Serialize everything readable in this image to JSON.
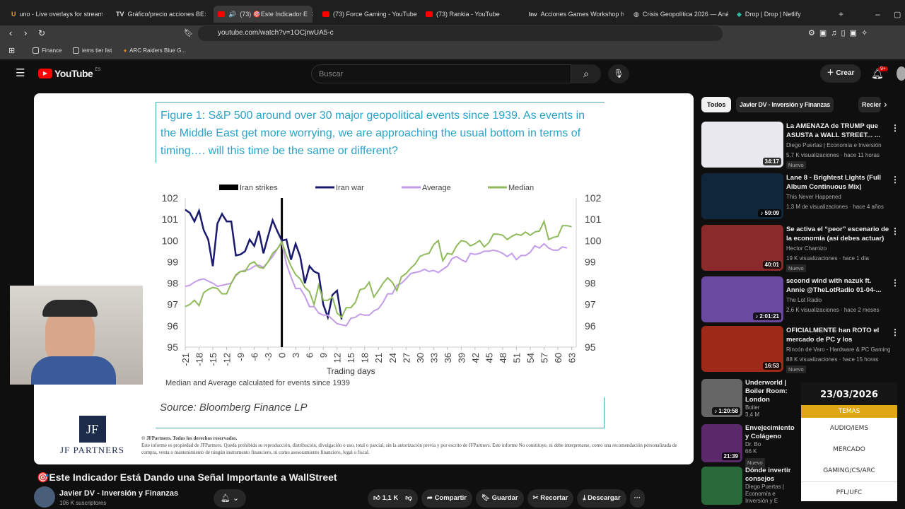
{
  "browser": {
    "tabs": [
      {
        "label": "uno - Live overlays for streamin",
        "icon": "u-icon"
      },
      {
        "label": "Gráfico/precio acciones BE: NY",
        "icon": "tradingview-icon"
      },
      {
        "label": "(73) 🎯Este Indicador E",
        "icon": "youtube-icon",
        "active": true
      },
      {
        "label": "(73) Force Gaming - YouTube",
        "icon": "youtube-icon"
      },
      {
        "label": "(73) Rankia - YouTube",
        "icon": "youtube-icon"
      },
      {
        "label": "Acciones Games Workshop ho",
        "icon": "investing-icon"
      },
      {
        "label": "Crisis Geopolítica 2026 — Anál",
        "icon": "globe-icon"
      },
      {
        "label": "Drop | Drop | Netlify",
        "icon": "netlify-icon"
      }
    ],
    "new_tab": "+",
    "url": "youtube.com/watch?v=1OCjrwUA5-c",
    "bookmarks": [
      "Finance",
      "iems tier list",
      "ARC Raiders Blue G..."
    ]
  },
  "youtube": {
    "logo": "YouTube",
    "region": "ES",
    "search_placeholder": "Buscar",
    "create": "Crear",
    "notif_count": "9+"
  },
  "slide": {
    "figure_title": "Figure 1: S&P 500 around over 30 major geopolitical events since 1939. As events in the Middle East get more worrying, we are approaching the usual bottom in terms of timing…. will this time be the same or different?",
    "note": "Median and Average calculated for events since 1939",
    "source": "Source: Bloomberg Finance LP",
    "copyright": "© JFPartners. Todos los derechos reservados.",
    "disclaimer": "Este informe es propiedad de JFPartners. Queda prohibida su reproducción, distribución, divulgación o uso, total o parcial, sin la autorización previa y por escrito de JFPartners. Este informe No constituye, ni debe interpretarse, como una recomendación personalizada de compra, venta o mantenimiento de ningún instrumento financiero, ni como asesoramiento financiero, legal o fiscal.",
    "logo_mark": "JF",
    "logo_text": "JF PARTNERS"
  },
  "chart_data": {
    "type": "line",
    "xlabel": "Trading days",
    "ylim": [
      95,
      102
    ],
    "xlim": [
      -21,
      64
    ],
    "yticks": [
      95,
      96,
      97,
      98,
      99,
      100,
      101,
      102
    ],
    "xticks": [
      -21,
      -18,
      -15,
      -12,
      -9,
      -6,
      -3,
      0,
      3,
      6,
      9,
      12,
      15,
      18,
      21,
      24,
      27,
      30,
      33,
      36,
      39,
      42,
      45,
      48,
      51,
      54,
      57,
      60,
      63
    ],
    "event_marker": {
      "name": "Iran strikes",
      "x": 0,
      "color": "#000000"
    },
    "series": [
      {
        "name": "Iran war",
        "color": "#1a1a6e",
        "x_start": -21,
        "values": [
          101.45,
          101.3,
          100.9,
          101.4,
          100.5,
          100.05,
          98.8,
          100.8,
          101.25,
          100.9,
          100.9,
          99.3,
          99.35,
          99.5,
          100.05,
          99.75,
          100.45,
          99.4,
          100.2,
          100.95,
          100.45,
          100.0,
          100.05,
          99.1,
          99.85,
          99.25,
          98.0,
          98.8,
          98.55,
          98.45,
          97.0,
          96.4,
          97.45,
          97.65,
          96.3
        ]
      },
      {
        "name": "Average",
        "color": "#c39be8",
        "x_start": -21,
        "values": [
          97.85,
          97.9,
          98.05,
          98.15,
          98.2,
          98.1,
          98.0,
          97.85,
          97.9,
          97.95,
          98.0,
          98.35,
          98.55,
          98.6,
          98.65,
          98.8,
          98.85,
          98.75,
          99.0,
          99.25,
          99.6,
          99.9,
          98.9,
          98.3,
          97.75,
          97.75,
          97.4,
          96.9,
          96.9,
          96.6,
          96.5,
          96.5,
          96.3,
          96.1,
          96.05,
          96.0,
          96.35,
          96.4,
          96.55,
          96.5,
          96.5,
          96.7,
          96.8,
          97.1,
          97.5,
          97.5,
          97.9,
          98.0,
          98.2,
          98.45,
          98.5,
          98.55,
          98.65,
          98.55,
          98.6,
          98.5,
          98.65,
          98.8,
          99.15,
          99.25,
          99.1,
          99.0,
          99.4,
          99.35,
          99.4,
          99.5,
          99.5,
          99.55,
          99.5,
          99.4,
          99.25,
          99.4,
          99.1,
          99.3,
          99.3,
          99.45,
          99.75,
          99.65,
          99.85,
          99.65,
          99.55,
          99.55,
          99.7,
          99.65
        ]
      },
      {
        "name": "Median",
        "color": "#8fba5a",
        "x_start": -21,
        "values": [
          96.9,
          97.0,
          97.2,
          96.95,
          97.55,
          97.7,
          97.8,
          97.75,
          97.5,
          97.5,
          98.0,
          98.4,
          98.55,
          98.55,
          98.9,
          99.0,
          98.75,
          98.7,
          99.0,
          99.4,
          99.6,
          99.95,
          99.3,
          98.8,
          98.4,
          98.2,
          97.8,
          97.6,
          97.0,
          97.9,
          97.2,
          97.2,
          97.35,
          96.6,
          96.4,
          96.85,
          96.85,
          97.1,
          97.7,
          97.75,
          98.05,
          97.35,
          97.65,
          98.0,
          98.25,
          98.05,
          97.65,
          98.3,
          98.45,
          98.7,
          98.9,
          99.25,
          99.35,
          99.4,
          99.8,
          100.0,
          99.05,
          99.4,
          99.35,
          99.75,
          100.0,
          99.95,
          99.75,
          99.85,
          100.0,
          99.7,
          99.9,
          100.3,
          100.3,
          100.25,
          100.05,
          100.2,
          100.3,
          100.25,
          100.4,
          100.25,
          100.4,
          100.45,
          100.9,
          100.05,
          100.15,
          100.2,
          100.7,
          100.7,
          100.65
        ]
      }
    ],
    "legend_position": "top",
    "grid": false
  },
  "video": {
    "title": "🎯Este Indicador Está Dando una Señal Importante a WallStreet",
    "channel": "Javier DV - Inversión y Finanzas",
    "subscribers": "106 K suscriptores",
    "likes": "1,1 K",
    "share": "Compartir",
    "save": "Guardar",
    "clip": "Recortar",
    "download": "Descargar",
    "more": "···"
  },
  "sidebar": {
    "chips": [
      "Todos",
      "Javier DV - Inversión y Finanzas",
      "Recientes"
    ],
    "items": [
      {
        "title": "La AMENAZA de TRUMP que ASUSTA a WALL STREET... ...",
        "channel": "Diego Puertas | Economía e Inversión",
        "meta": "5,7 K visualizaciones · hace 11 horas",
        "badge": "Nuevo",
        "duration": "34:17",
        "thumb": "#e8e8ee"
      },
      {
        "title": "Lane 8 - Brightest Lights (Full Album Continuous Mix)",
        "channel": "This Never Happened",
        "meta": "1,3 M de visualizaciones · hace 4 años",
        "duration": "♪ 59:09",
        "thumb": "#10263a"
      },
      {
        "title": "Se activa el “peor” escenario de la economía (así debes actuar)",
        "channel": "Hector Chamizo",
        "meta": "19 K visualizaciones · hace 1 día",
        "badge": "Nuevo",
        "duration": "40:01",
        "thumb": "#8a2a2a"
      },
      {
        "title": "second wind with nazuk ft. Annie @TheLotRadio  01-04-...",
        "channel": "The Lot Radio",
        "meta": "2,6 K visualizaciones · hace 2 meses",
        "duration": "♪ 2:01:21",
        "thumb": "#6a4aa0"
      },
      {
        "title": "OFICIALMENTE han ROTO el mercado de PC y los PRECIOS...",
        "channel": "Rincón de Varo - Hardware & PC Gaming",
        "meta": "88 K visualizaciones · hace 15 horas",
        "badge": "Nuevo",
        "duration": "16:53",
        "thumb": "#a02a1a"
      },
      {
        "title": "Underworld | Boiler Room: London",
        "channel": "Boiler",
        "meta": "3,4 M",
        "duration": "♪ 1:20:58",
        "thumb": "#666"
      },
      {
        "title": "Envejecimiento y Colágeno",
        "channel": "Dr. Bo",
        "meta": "66 K",
        "badge": "Nuevo",
        "duration": "21:39",
        "thumb": "#5a2a6a"
      },
      {
        "title": "Dónde invertir consejos",
        "channel": "Diego Puertas | Economía e Inversión y E",
        "meta": "",
        "duration": "",
        "thumb": "#2a6a3a"
      }
    ]
  },
  "overlay": {
    "date": "23/03/2026",
    "header": "TEMAS",
    "items": [
      "AUDIO/IEMS",
      "MERCADO",
      "GAMING/CS/ARC",
      "PFL/UFC"
    ],
    "accent": "#e0a714"
  }
}
